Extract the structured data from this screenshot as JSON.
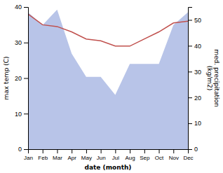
{
  "chart_data": {
    "type": "line",
    "categories": [
      "Jan",
      "Feb",
      "Mar",
      "Apr",
      "May",
      "Jun",
      "Jul",
      "Aug",
      "Sep",
      "Oct",
      "Nov",
      "Dec"
    ],
    "xlabel": "date (month)",
    "ylabel": "max temp (C)",
    "y2label": "med. precipitation\n(kg/m2)",
    "ylim": [
      0,
      40
    ],
    "yticks": [
      0,
      10,
      20,
      30,
      40
    ],
    "y2lim": [
      0,
      55
    ],
    "y2ticks": [
      0,
      10,
      20,
      30,
      40,
      50
    ],
    "series": [
      {
        "type": "area",
        "axis": "y2",
        "color": "#b8c4e8",
        "values": [
          53,
          48,
          54,
          37,
          28,
          28,
          21,
          33,
          33,
          33,
          48,
          53
        ]
      },
      {
        "type": "line",
        "color": "#c0504d",
        "values": [
          38.0,
          35.0,
          34.5,
          33.0,
          31.0,
          30.5,
          29.0,
          29.0,
          31.0,
          33.0,
          35.5,
          36.0
        ]
      }
    ]
  }
}
